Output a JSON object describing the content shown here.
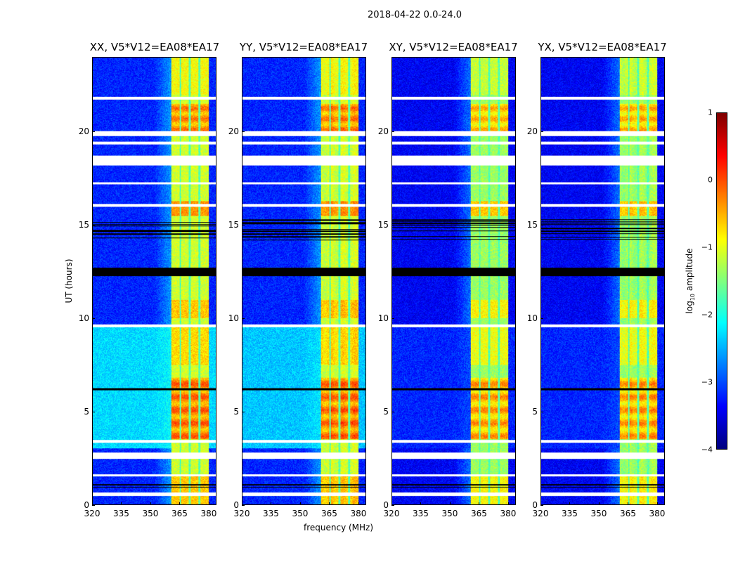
{
  "chart_data": {
    "type": "heatmap",
    "title": "2018-04-22 0.0-24.0",
    "xlabel": "frequency (MHz)",
    "ylabel": "UT (hours)",
    "xlim": [
      320,
      384
    ],
    "ylim": [
      0,
      24
    ],
    "xticks": [
      "320",
      "335",
      "350",
      "365",
      "380"
    ],
    "xtick_values": [
      320,
      335,
      350,
      365,
      380
    ],
    "yticks": [
      "0",
      "5",
      "10",
      "15",
      "20"
    ],
    "ytick_values": [
      0,
      5,
      10,
      15,
      20
    ],
    "panels": [
      {
        "title": "XX, V5*V12=EA08*EA17",
        "background_level": -3.2,
        "daytime_level": -2.3
      },
      {
        "title": "YY, V5*V12=EA08*EA17",
        "background_level": -3.2,
        "daytime_level": -2.4
      },
      {
        "title": "XY, V5*V12=EA08*EA17",
        "background_level": -3.4,
        "daytime_level": -3.2
      },
      {
        "title": "YX, V5*V12=EA08*EA17",
        "background_level": -3.4,
        "daytime_level": -3.2
      }
    ],
    "bright_band_mhz": [
      361,
      380.5
    ],
    "subband_edges_mhz": [
      365.5,
      370.5,
      375.5
    ],
    "flagged_hours": [
      [
        0.45,
        0.65
      ],
      [
        1.5,
        1.6
      ],
      [
        2.45,
        2.8
      ],
      [
        3.3,
        3.45
      ],
      [
        9.5,
        9.65
      ],
      [
        18.2,
        18.75
      ],
      [
        19.35,
        19.5
      ],
      [
        19.8,
        20.05
      ],
      [
        21.75,
        21.9
      ],
      [
        16.0,
        16.15
      ],
      [
        17.2,
        17.3
      ]
    ],
    "dark_hours": [
      [
        12.25,
        12.7
      ],
      [
        14.2,
        15.3
      ],
      [
        6.15,
        6.25
      ],
      [
        1.0,
        1.1
      ],
      [
        0.9,
        0.95
      ]
    ],
    "colorbar": {
      "label_main": "log",
      "label_sub": "10",
      "label_rest": " amplitude",
      "ticks": [
        "1",
        "0",
        "−1",
        "−2",
        "−3",
        "−4"
      ],
      "tick_values": [
        1,
        0,
        -1,
        -2,
        -3,
        -4
      ],
      "range": [
        -4,
        1
      ],
      "colormap": "jet"
    }
  }
}
